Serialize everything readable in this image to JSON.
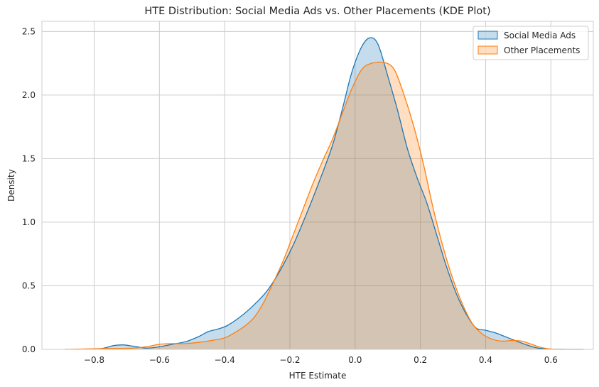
{
  "chart_data": {
    "type": "area",
    "title": "HTE Distribution: Social Media Ads vs. Other Placements (KDE Plot)",
    "xlabel": "HTE Estimate",
    "ylabel": "Density",
    "xlim": [
      -0.96,
      0.73
    ],
    "ylim": [
      0,
      2.58
    ],
    "xticks": [
      -0.8,
      -0.6,
      -0.4,
      -0.2,
      0.0,
      0.2,
      0.4,
      0.6
    ],
    "xtick_labels": [
      "−0.8",
      "−0.6",
      "−0.4",
      "−0.2",
      "0.0",
      "0.2",
      "0.4",
      "0.6"
    ],
    "yticks": [
      0.0,
      0.5,
      1.0,
      1.5,
      2.0,
      2.5
    ],
    "ytick_labels": [
      "0.0",
      "0.5",
      "1.0",
      "1.5",
      "2.0",
      "2.5"
    ],
    "grid": true,
    "legend_position": "top-right",
    "series": [
      {
        "name": "Social Media Ads",
        "color": "#1f77b4",
        "points": [
          [
            -0.8,
            0.0
          ],
          [
            -0.77,
            0.01
          ],
          [
            -0.74,
            0.03
          ],
          [
            -0.71,
            0.035
          ],
          [
            -0.68,
            0.025
          ],
          [
            -0.64,
            0.01
          ],
          [
            -0.6,
            0.02
          ],
          [
            -0.56,
            0.04
          ],
          [
            -0.52,
            0.06
          ],
          [
            -0.48,
            0.1
          ],
          [
            -0.45,
            0.14
          ],
          [
            -0.42,
            0.16
          ],
          [
            -0.39,
            0.19
          ],
          [
            -0.35,
            0.26
          ],
          [
            -0.31,
            0.35
          ],
          [
            -0.27,
            0.46
          ],
          [
            -0.23,
            0.62
          ],
          [
            -0.19,
            0.82
          ],
          [
            -0.15,
            1.06
          ],
          [
            -0.11,
            1.32
          ],
          [
            -0.07,
            1.6
          ],
          [
            -0.04,
            1.88
          ],
          [
            -0.01,
            2.18
          ],
          [
            0.02,
            2.38
          ],
          [
            0.045,
            2.45
          ],
          [
            0.07,
            2.4
          ],
          [
            0.1,
            2.15
          ],
          [
            0.13,
            1.88
          ],
          [
            0.16,
            1.58
          ],
          [
            0.19,
            1.35
          ],
          [
            0.22,
            1.15
          ],
          [
            0.25,
            0.9
          ],
          [
            0.28,
            0.65
          ],
          [
            0.31,
            0.44
          ],
          [
            0.34,
            0.28
          ],
          [
            0.37,
            0.17
          ],
          [
            0.4,
            0.15
          ],
          [
            0.43,
            0.13
          ],
          [
            0.46,
            0.1
          ],
          [
            0.49,
            0.07
          ],
          [
            0.52,
            0.04
          ],
          [
            0.56,
            0.01
          ],
          [
            0.6,
            0.003
          ],
          [
            0.65,
            0.0
          ],
          [
            0.7,
            0.0
          ]
        ]
      },
      {
        "name": "Other Placements",
        "color": "#ff7f0e",
        "points": [
          [
            -0.89,
            0.0
          ],
          [
            -0.84,
            0.003
          ],
          [
            -0.78,
            0.006
          ],
          [
            -0.72,
            0.008
          ],
          [
            -0.68,
            0.01
          ],
          [
            -0.64,
            0.02
          ],
          [
            -0.6,
            0.04
          ],
          [
            -0.56,
            0.045
          ],
          [
            -0.52,
            0.045
          ],
          [
            -0.48,
            0.055
          ],
          [
            -0.44,
            0.07
          ],
          [
            -0.4,
            0.09
          ],
          [
            -0.37,
            0.13
          ],
          [
            -0.34,
            0.18
          ],
          [
            -0.31,
            0.25
          ],
          [
            -0.28,
            0.37
          ],
          [
            -0.25,
            0.53
          ],
          [
            -0.22,
            0.7
          ],
          [
            -0.19,
            0.9
          ],
          [
            -0.16,
            1.1
          ],
          [
            -0.13,
            1.3
          ],
          [
            -0.1,
            1.48
          ],
          [
            -0.07,
            1.65
          ],
          [
            -0.04,
            1.85
          ],
          [
            -0.01,
            2.05
          ],
          [
            0.02,
            2.2
          ],
          [
            0.05,
            2.25
          ],
          [
            0.09,
            2.255
          ],
          [
            0.12,
            2.2
          ],
          [
            0.15,
            2.0
          ],
          [
            0.18,
            1.75
          ],
          [
            0.21,
            1.45
          ],
          [
            0.24,
            1.1
          ],
          [
            0.27,
            0.8
          ],
          [
            0.3,
            0.55
          ],
          [
            0.33,
            0.35
          ],
          [
            0.36,
            0.2
          ],
          [
            0.39,
            0.12
          ],
          [
            0.42,
            0.08
          ],
          [
            0.45,
            0.065
          ],
          [
            0.48,
            0.07
          ],
          [
            0.51,
            0.065
          ],
          [
            0.54,
            0.04
          ],
          [
            0.57,
            0.015
          ],
          [
            0.6,
            0.003
          ],
          [
            0.64,
            0.0
          ]
        ]
      }
    ]
  }
}
